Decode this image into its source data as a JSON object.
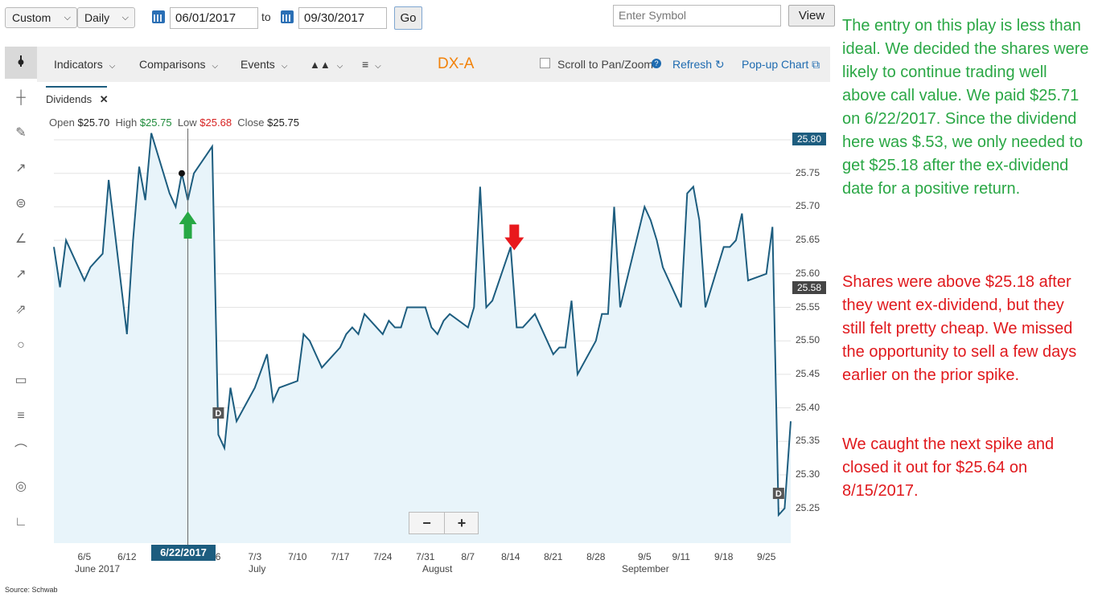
{
  "controls": {
    "range": "Custom",
    "interval": "Daily",
    "start_date": "06/01/2017",
    "to_label": "to",
    "end_date": "09/30/2017",
    "go_label": "Go",
    "symbol_placeholder": "Enter Symbol",
    "view_label": "View"
  },
  "menubar": {
    "indicators": "Indicators",
    "comparisons": "Comparisons",
    "events": "Events",
    "symbol": "DX-A",
    "scroll_label": "Scroll to Pan/Zoom",
    "refresh": "Refresh",
    "popup": "Pop-up Chart"
  },
  "study_tab": "Dividends",
  "ohlc": {
    "open_label": "Open",
    "open": "$25.70",
    "high_label": "High",
    "high": "$25.75",
    "low_label": "Low",
    "low": "$25.68",
    "close_label": "Close",
    "close": "$25.75"
  },
  "badges": {
    "top": "25.80",
    "current": "25.58"
  },
  "crosshair_date": "6/22/2017",
  "dividend_marker": "D",
  "zoom": {
    "minus": "−",
    "plus": "+"
  },
  "source": "Source: Schwab",
  "colors": {
    "line": "#1d5d7f",
    "fill": "#e8f4fa",
    "buy_arrow": "#27a844",
    "sell_arrow": "#e8191d",
    "accent": "#f2820a"
  },
  "annotations": [
    {
      "text": "The entry on this play is less than ideal. We decided the shares were likely to continue trading well above call value. We paid $25.71 on 6/22/2017. Since the dividend here was $.53, we only needed to get $25.18 after the ex-dividend date for a positive return.",
      "color": "#2aa745"
    },
    {
      "text": "Shares were above $25.18 after they went ex-dividend, but they still felt pretty cheap. We missed the opportunity to sell a few days earlier on the prior spike.",
      "color": "#e0191d"
    },
    {
      "text": "We caught the next spike and closed it out for $25.64 on 8/15/2017.",
      "color": "#e0191d"
    }
  ],
  "chart_data": {
    "type": "line",
    "symbol": "DX-A",
    "ylim": [
      25.2,
      25.82
    ],
    "yticks": [
      "25.80",
      "25.75",
      "25.70",
      "25.65",
      "25.60",
      "25.55",
      "25.50",
      "25.45",
      "25.40",
      "25.35",
      "25.30",
      "25.25"
    ],
    "xticks": [
      "6/5",
      "6/12",
      "6/22/2017",
      "26",
      "7/3",
      "7/10",
      "7/17",
      "7/24",
      "7/31",
      "8/7",
      "8/14",
      "8/21",
      "8/28",
      "9/5",
      "9/11",
      "9/18",
      "9/25"
    ],
    "months": [
      "June 2017",
      "July",
      "August",
      "September"
    ],
    "x": [
      "2017-05-31",
      "2017-06-01",
      "2017-06-02",
      "2017-06-05",
      "2017-06-06",
      "2017-06-07",
      "2017-06-08",
      "2017-06-09",
      "2017-06-12",
      "2017-06-13",
      "2017-06-14",
      "2017-06-15",
      "2017-06-16",
      "2017-06-19",
      "2017-06-20",
      "2017-06-21",
      "2017-06-22",
      "2017-06-23",
      "2017-06-26",
      "2017-06-27",
      "2017-06-28",
      "2017-06-29",
      "2017-06-30",
      "2017-07-03",
      "2017-07-05",
      "2017-07-06",
      "2017-07-07",
      "2017-07-10",
      "2017-07-11",
      "2017-07-12",
      "2017-07-13",
      "2017-07-14",
      "2017-07-17",
      "2017-07-18",
      "2017-07-19",
      "2017-07-20",
      "2017-07-21",
      "2017-07-24",
      "2017-07-25",
      "2017-07-26",
      "2017-07-27",
      "2017-07-28",
      "2017-07-31",
      "2017-08-01",
      "2017-08-02",
      "2017-08-03",
      "2017-08-04",
      "2017-08-07",
      "2017-08-08",
      "2017-08-09",
      "2017-08-10",
      "2017-08-11",
      "2017-08-14",
      "2017-08-15",
      "2017-08-16",
      "2017-08-17",
      "2017-08-18",
      "2017-08-21",
      "2017-08-22",
      "2017-08-23",
      "2017-08-24",
      "2017-08-25",
      "2017-08-28",
      "2017-08-29",
      "2017-08-30",
      "2017-08-31",
      "2017-09-01",
      "2017-09-05",
      "2017-09-06",
      "2017-09-07",
      "2017-09-08",
      "2017-09-11",
      "2017-09-12",
      "2017-09-13",
      "2017-09-14",
      "2017-09-15",
      "2017-09-18",
      "2017-09-19",
      "2017-09-20",
      "2017-09-21",
      "2017-09-22",
      "2017-09-25",
      "2017-09-26",
      "2017-09-27",
      "2017-09-28",
      "2017-09-29"
    ],
    "values": [
      25.64,
      25.58,
      25.65,
      25.59,
      25.61,
      25.62,
      25.63,
      25.74,
      25.51,
      25.65,
      25.76,
      25.71,
      25.81,
      25.72,
      25.7,
      25.75,
      25.71,
      25.75,
      25.79,
      25.36,
      25.34,
      25.43,
      25.38,
      25.43,
      25.48,
      25.41,
      25.43,
      25.44,
      25.51,
      25.5,
      25.48,
      25.46,
      25.49,
      25.51,
      25.52,
      25.51,
      25.54,
      25.51,
      25.53,
      25.52,
      25.52,
      25.55,
      25.55,
      25.52,
      25.51,
      25.53,
      25.54,
      25.52,
      25.55,
      25.73,
      25.55,
      25.56,
      25.64,
      25.52,
      25.52,
      25.53,
      25.54,
      25.48,
      25.49,
      25.49,
      25.56,
      25.45,
      25.5,
      25.54,
      25.54,
      25.7,
      25.55,
      25.7,
      25.68,
      25.65,
      25.61,
      25.55,
      25.72,
      25.73,
      25.68,
      25.55,
      25.64,
      25.64,
      25.65,
      25.69,
      25.59,
      25.6,
      25.67,
      25.24,
      25.25,
      25.38
    ],
    "events": [
      {
        "type": "buy",
        "date": "2017-06-22",
        "price": 25.71
      },
      {
        "type": "sell",
        "date": "2017-08-15",
        "price": 25.64
      },
      {
        "type": "dividend",
        "date": "2017-06-27"
      },
      {
        "type": "dividend",
        "date": "2017-09-27"
      }
    ],
    "grid": true
  }
}
